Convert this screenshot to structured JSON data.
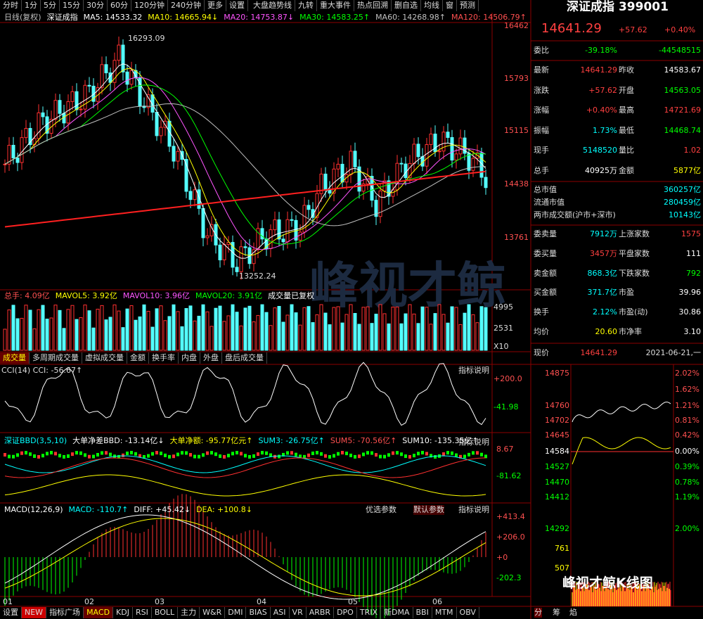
{
  "toolbar": {
    "periods": [
      "分时",
      "1分",
      "5分",
      "15分",
      "30分",
      "60分",
      "120分钟",
      "240分钟",
      "更多",
      "设置"
    ],
    "tools": [
      "大盘趋势线",
      "九转",
      "重大事件",
      "热点回溯",
      "删自选",
      "均线",
      "窗",
      "预测"
    ]
  },
  "kline": {
    "header": [
      {
        "text": "日线(复权)",
        "color": "#c0c0c0"
      },
      {
        "text": "深证成指",
        "color": "#ffffff"
      },
      {
        "text": "MA5: 14533.32",
        "color": "#ffffff"
      },
      {
        "text": "MA10: 14665.94↓",
        "color": "#ffff00"
      },
      {
        "text": "MA20: 14753.87↓",
        "color": "#ff55ff"
      },
      {
        "text": "MA30: 14583.25↑",
        "color": "#00ff00"
      },
      {
        "text": "MA60: 14268.98↑",
        "color": "#c0c0c0"
      },
      {
        "text": "MA120: 14506.79↑",
        "color": "#ff5050"
      }
    ],
    "axis": [
      "16462",
      "15793",
      "15115",
      "14438",
      "13761"
    ],
    "high_label": "16293.09",
    "low_label": "13252.24",
    "watermark": "峰视才鲸"
  },
  "volume": {
    "header": [
      {
        "text": "总手: 4.09亿",
        "color": "#ff5050"
      },
      {
        "text": "MAVOL5: 3.92亿",
        "color": "#ffff00"
      },
      {
        "text": "MAVOL10: 3.96亿",
        "color": "#ff55ff"
      },
      {
        "text": "MAVOL20: 3.91亿",
        "color": "#00ff00"
      },
      {
        "text": "成交量已复权",
        "color": "#ffffff"
      }
    ],
    "axis": [
      "4995",
      "2531",
      "X10"
    ]
  },
  "volume_tabs": [
    "成交量",
    "多周期成交量",
    "虚拟成交量",
    "金额",
    "换手率",
    "内盘",
    "外盘",
    "盘后成交量"
  ],
  "cci": {
    "header": "CCI(14) CCI: -56.67↑",
    "button": "指标说明",
    "axis": [
      "+200.0",
      "-41.98"
    ]
  },
  "bbd": {
    "header": [
      {
        "text": "深证BBD(3,5,10)",
        "color": "#00ffff"
      },
      {
        "text": "大单净差BBD: -13.14亿↓",
        "color": "#ffffff"
      },
      {
        "text": "大单净额: -95.77亿元↑",
        "color": "#ffff00"
      },
      {
        "text": "SUM3: -26.75亿↑",
        "color": "#00ffff"
      },
      {
        "text": "SUM5: -70.56亿↑",
        "color": "#ff5050"
      },
      {
        "text": "SUM10: -135.35亿↑",
        "color": "#ffffff"
      }
    ],
    "button": "指标说明",
    "axis": [
      "8.67",
      "-81.62"
    ]
  },
  "macd": {
    "header": [
      {
        "text": "MACD(12,26,9)",
        "color": "#ffffff"
      },
      {
        "text": "MACD: -110.7↑",
        "color": "#00ffff"
      },
      {
        "text": "DIFF: +45.42↓",
        "color": "#ffffff"
      },
      {
        "text": "DEA: +100.8↓",
        "color": "#ffff00"
      }
    ],
    "buttons": [
      "优选参数",
      "默认参数",
      "指标说明"
    ],
    "axis": [
      "+413.4",
      "+206.0",
      "+0",
      "-202.3"
    ]
  },
  "months": [
    "01",
    "02",
    "03",
    "04",
    "05",
    "06"
  ],
  "bottom_tabs": [
    "设置",
    "NEW",
    "指标广场",
    "MACD",
    "KDJ",
    "RSI",
    "BOLL",
    "主力",
    "W&R",
    "DMI",
    "BIAS",
    "ASI",
    "VR",
    "ARBR",
    "DPO",
    "TRIX",
    "新DMA",
    "BBI",
    "MTM",
    "OBV"
  ],
  "quote": {
    "title": "深证成指 399001",
    "price": "14641.29",
    "change": "+57.62",
    "pct": "+0.40%",
    "ratio": [
      "委比",
      "-39.18%",
      "-44548515"
    ],
    "pairs": [
      [
        "最新",
        "14641.29",
        "昨收",
        "14583.67"
      ],
      [
        "涨跌",
        "+57.62",
        "开盘",
        "14563.05"
      ],
      [
        "涨幅",
        "+0.40%",
        "最高",
        "14721.69"
      ],
      [
        "振幅",
        "1.73%",
        "最低",
        "14468.74"
      ],
      [
        "现手",
        "5148520",
        "量比",
        "1.02"
      ],
      [
        "总手",
        "40925万",
        "金额",
        "5877亿"
      ]
    ],
    "singles": [
      [
        "总市值",
        "360257亿"
      ],
      [
        "流通市值",
        "280459亿"
      ],
      [
        "两市成交额(沪市+深市)",
        "10143亿"
      ]
    ],
    "pairs2": [
      [
        "委卖量",
        "7912万",
        "上涨家数",
        "1575"
      ],
      [
        "委买量",
        "3457万",
        "平盘家数",
        "111"
      ],
      [
        "卖金额",
        "868.3亿",
        "下跌家数",
        "792"
      ],
      [
        "买金额",
        "371.7亿",
        "市盈",
        "39.96"
      ],
      [
        "换手",
        "2.12%",
        "市盈(动)",
        "30.86"
      ],
      [
        "均价",
        "20.60",
        "市净率",
        "3.10"
      ]
    ],
    "now": [
      "现价",
      "14641.29",
      "2021-06-21,一"
    ]
  },
  "intraday": {
    "left_axis": [
      "14875",
      "14760",
      "14702",
      "14645",
      "14584",
      "14527",
      "14470",
      "14412",
      "14292",
      "761",
      "507"
    ],
    "right_axis": [
      "2.02%",
      "1.62%",
      "1.21%",
      "0.81%",
      "0.42%",
      "0.00%",
      "0.39%",
      "0.78%",
      "1.19%",
      "2.00%"
    ],
    "tabs": [
      "分",
      "筹",
      "焰"
    ]
  },
  "watermark": "峰视才鲸K线图"
}
